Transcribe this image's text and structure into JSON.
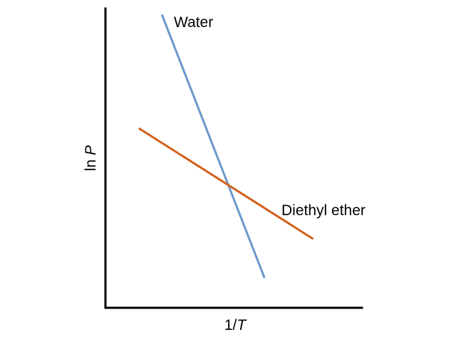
{
  "chart_data": {
    "type": "line",
    "title": "",
    "xlabel": {
      "prefix": "1/",
      "italic": "T"
    },
    "ylabel": {
      "prefix": "ln ",
      "italic": "P"
    },
    "xlim": [
      0,
      1
    ],
    "ylim": [
      0,
      1
    ],
    "grid": false,
    "ticks": false,
    "series": [
      {
        "name": "Water",
        "color": "#6b97cb",
        "x": [
          0.22,
          0.62
        ],
        "y": [
          0.98,
          0.1
        ]
      },
      {
        "name": "Diethyl ether",
        "color": "#d2601b",
        "x": [
          0.13,
          0.81
        ],
        "y": [
          0.6,
          0.23
        ]
      }
    ]
  }
}
